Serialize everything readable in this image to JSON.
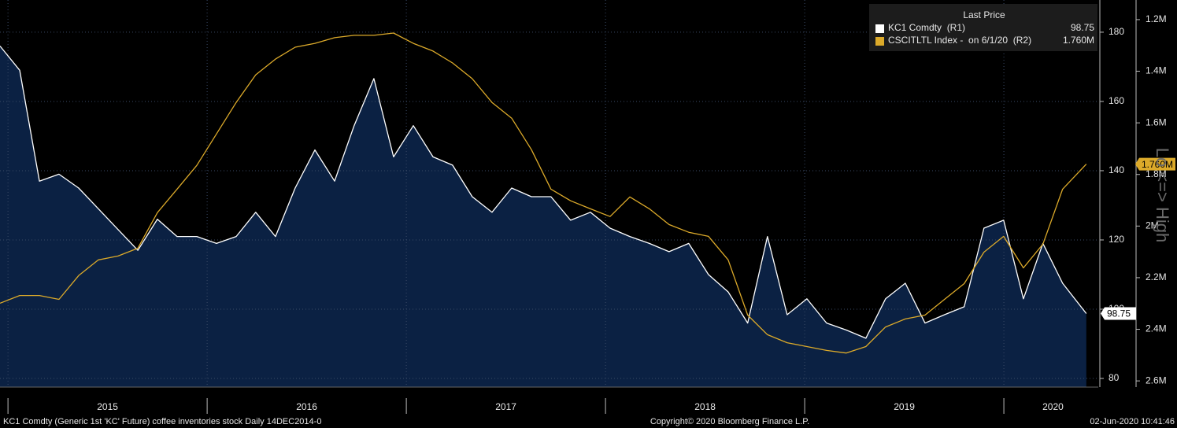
{
  "chart_data": {
    "type": "line",
    "legend_title": "Last Price",
    "axis_side_label": "Lo <=> High",
    "footer_left": "KC1 Comdty (Generic 1st 'KC' Future) coffee inventories stock  Daily 14DEC2014-0",
    "footer_center": "Copyright© 2020 Bloomberg Finance L.P.",
    "footer_right": "02-Jun-2020 10:41:46",
    "x": [
      2014.96,
      2015.059,
      2015.158,
      2015.256,
      2015.355,
      2015.454,
      2015.553,
      2015.652,
      2015.75,
      2015.849,
      2015.948,
      2016.047,
      2016.146,
      2016.244,
      2016.343,
      2016.442,
      2016.541,
      2016.64,
      2016.738,
      2016.837,
      2016.936,
      2017.035,
      2017.134,
      2017.232,
      2017.331,
      2017.43,
      2017.529,
      2017.628,
      2017.726,
      2017.825,
      2017.924,
      2018.023,
      2018.122,
      2018.22,
      2018.319,
      2018.418,
      2018.517,
      2018.616,
      2018.714,
      2018.813,
      2018.912,
      2019.011,
      2019.11,
      2019.208,
      2019.307,
      2019.406,
      2019.505,
      2019.604,
      2019.702,
      2019.801,
      2019.9,
      2019.999,
      2020.098,
      2020.196,
      2020.295,
      2020.414
    ],
    "xlim": [
      2014.96,
      2020.474
    ],
    "xticks": [
      2015,
      2016,
      2017,
      2018,
      2019,
      2020
    ],
    "ylim": [
      77.5,
      189.3
    ],
    "yticks": [
      80,
      100,
      120,
      140,
      160,
      180
    ],
    "y2lim": [
      1124000,
      2624000
    ],
    "y2_inverted": true,
    "y2ticks": [
      {
        "value": 1200000,
        "label": "1.2M"
      },
      {
        "value": 1400000,
        "label": "1.4M"
      },
      {
        "value": 1600000,
        "label": "1.6M"
      },
      {
        "value": 1800000,
        "label": "1.8M"
      },
      {
        "value": 2000000,
        "label": "2M"
      },
      {
        "value": 2200000,
        "label": "2.2M"
      },
      {
        "value": 2400000,
        "label": "2.4M"
      },
      {
        "value": 2600000,
        "label": "2.6M"
      }
    ],
    "grid": true,
    "legend": "top-right",
    "series": [
      {
        "name": "KC1 Comdty  (R1)",
        "color": "#ffffff",
        "fill": "#0b2143",
        "values": [
          176,
          169,
          137,
          139,
          135,
          129,
          123,
          117,
          126,
          121,
          121,
          119,
          121,
          128,
          121,
          135,
          146,
          137,
          153,
          166.6,
          144,
          153,
          144,
          141.6,
          132.5,
          128,
          135,
          132.5,
          132.5,
          125.7,
          128,
          123.4,
          121,
          119,
          116.6,
          119,
          110,
          105,
          96,
          121,
          98.4,
          103,
          96,
          94,
          91.6,
          103,
          107.5,
          96,
          98.4,
          100.7,
          123.4,
          125.7,
          103,
          119,
          107.5,
          98.75
        ]
      },
      {
        "name": "CSCITLTL Index -  on 6/1/20  (R2)",
        "color": "#dcaa2a",
        "axis": "y2",
        "values": [
          2299000,
          2269000,
          2269000,
          2284000,
          2192000,
          2131000,
          2116000,
          2086000,
          1948000,
          1857000,
          1765000,
          1643000,
          1521000,
          1414000,
          1353000,
          1307000,
          1292000,
          1270000,
          1261000,
          1261000,
          1252000,
          1292000,
          1322000,
          1368000,
          1429000,
          1521000,
          1582000,
          1704000,
          1857000,
          1902000,
          1933000,
          1963000,
          1887000,
          1933000,
          1994000,
          2024000,
          2040000,
          2131000,
          2345000,
          2421000,
          2452000,
          2467000,
          2482000,
          2492000,
          2467000,
          2391000,
          2360000,
          2345000,
          2284000,
          2223000,
          2101000,
          2040000,
          2162000,
          2070000,
          1857000,
          1760000
        ],
        "value_labels": [
          null,
          null,
          null,
          null,
          null,
          null,
          null,
          null,
          null,
          null,
          null,
          null,
          null,
          null,
          null,
          null,
          null,
          null,
          null,
          null,
          null,
          null,
          null,
          null,
          null,
          null,
          null,
          null,
          null,
          null,
          null,
          null,
          null,
          null,
          null,
          null,
          null,
          null,
          null,
          null,
          null,
          null,
          null,
          null,
          null,
          null,
          null,
          null,
          null,
          null,
          null,
          null,
          null,
          null,
          null,
          "1.760M"
        ]
      }
    ]
  }
}
